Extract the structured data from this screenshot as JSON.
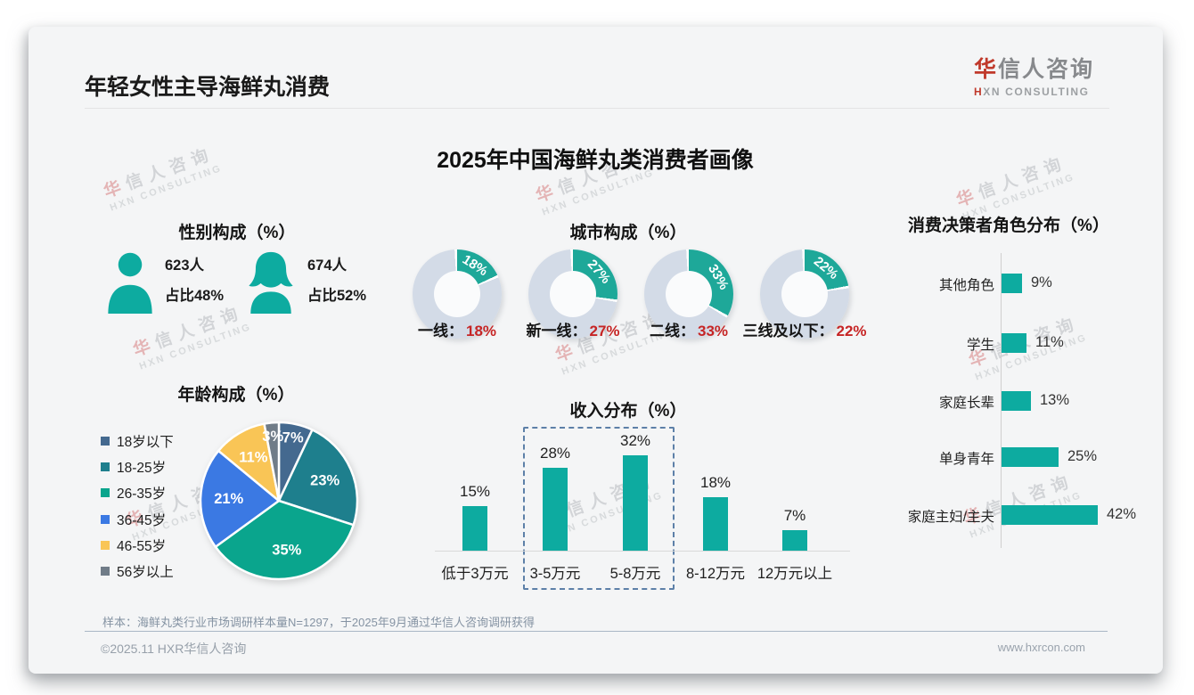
{
  "header": {
    "page_title": "年轻女性主导海鲜丸消费",
    "logo": {
      "cn_accent": "华",
      "cn_rest": "信人咨询",
      "en": "HXN CONSULTING"
    }
  },
  "main_title": "2025年中国海鲜丸类消费者画像",
  "watermark": {
    "cn_accent": "华",
    "cn_rest": "信人咨询",
    "en": "HXN CONSULTING"
  },
  "colors": {
    "accent": "#0daba0",
    "value_red": "#c62525",
    "donut_track": "#d3dbe7"
  },
  "gender": {
    "title": "性别构成（%）",
    "male": {
      "count": "623人",
      "share": "占比48%"
    },
    "female": {
      "count": "674人",
      "share": "占比52%"
    }
  },
  "chart_data": [
    {
      "id": "city",
      "type": "donut",
      "title": "城市构成（%）",
      "categories": [
        "一线",
        "新一线",
        "二线",
        "三线及以下"
      ],
      "values": [
        18,
        27,
        33,
        22
      ],
      "separator": "：",
      "segment_color": "#1ea899",
      "track_color": "#d3dbe7",
      "caption_value_color": "#c62525",
      "legend_position": "below"
    },
    {
      "id": "age",
      "type": "pie",
      "title": "年龄构成（%）",
      "categories": [
        "18岁以下",
        "18-25岁",
        "26-35岁",
        "36-45岁",
        "46-55岁",
        "56岁以上"
      ],
      "values": [
        7,
        23,
        35,
        21,
        11,
        3
      ],
      "colors": [
        "#44698f",
        "#1e7f8d",
        "#0aa58d",
        "#3b79e3",
        "#f9c556",
        "#707c88"
      ],
      "legend_position": "left"
    },
    {
      "id": "income",
      "type": "bar",
      "title": "收入分布（%）",
      "categories": [
        "低于3万元",
        "3-5万元",
        "5-8万元",
        "8-12万元",
        "12万元以上"
      ],
      "values": [
        15,
        28,
        32,
        18,
        7
      ],
      "bar_color": "#0daba0",
      "highlight_indices": [
        1,
        2
      ],
      "ylim": [
        0,
        35
      ],
      "grid": false
    },
    {
      "id": "decision",
      "type": "hbar",
      "title": "消费决策者角色分布（%）",
      "categories": [
        "其他角色",
        "学生",
        "家庭长辈",
        "单身青年",
        "家庭主妇/主夫"
      ],
      "values": [
        9,
        11,
        13,
        25,
        42
      ],
      "bar_color": "#0daba0",
      "xlim": [
        0,
        45
      ],
      "grid": false
    }
  ],
  "footer": {
    "note": "样本：海鲜丸类行业市场调研样本量N=1297，于2025年9月通过华信人咨询调研获得",
    "copyright": "©2025.11 HXR华信人咨询",
    "website": "www.hxrcon.com"
  }
}
